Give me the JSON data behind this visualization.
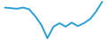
{
  "x": [
    0,
    1,
    2,
    3,
    4,
    5,
    6,
    7,
    8,
    9,
    10,
    11,
    12,
    13,
    14,
    15,
    16
  ],
  "y": [
    3.5,
    3.4,
    3.3,
    3.5,
    3.2,
    2.0,
    0.5,
    -1.8,
    0.2,
    0.8,
    0.2,
    0.9,
    0.3,
    0.8,
    1.5,
    2.8,
    4.5
  ],
  "line_color": "#2b9fd4",
  "background_color": "#ffffff",
  "linewidth": 1.4
}
